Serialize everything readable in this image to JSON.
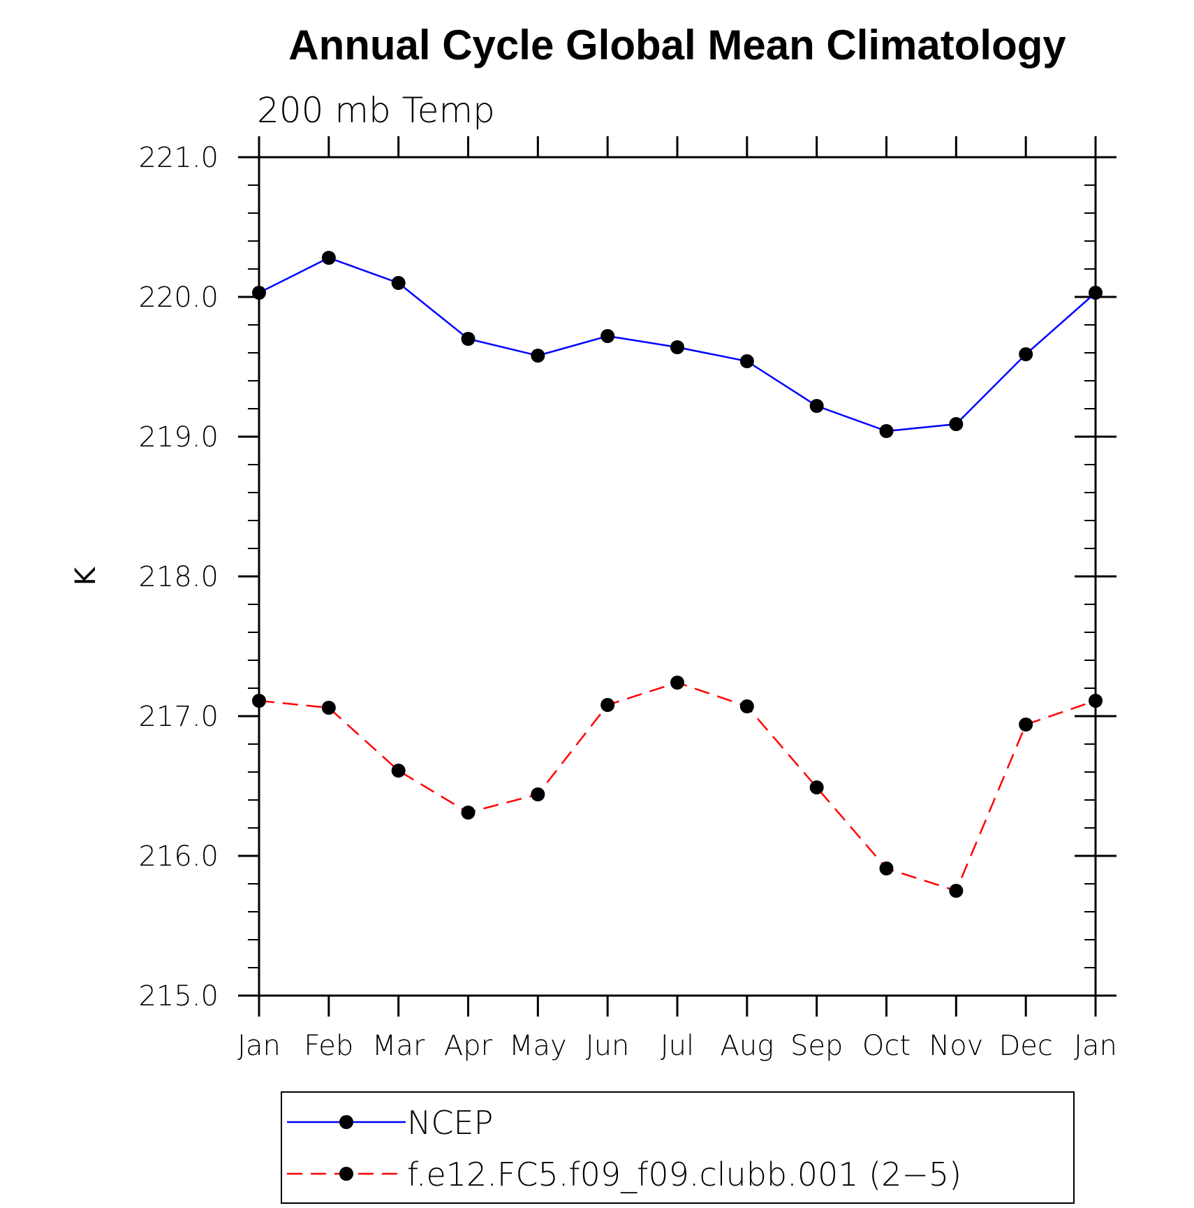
{
  "chart_data": {
    "type": "line",
    "title": "Annual Cycle Global Mean Climatology",
    "subtitle": "200 mb Temp",
    "xlabel": "",
    "ylabel": "K",
    "categories": [
      "Jan",
      "Feb",
      "Mar",
      "Apr",
      "May",
      "Jun",
      "Jul",
      "Aug",
      "Sep",
      "Oct",
      "Nov",
      "Dec",
      "Jan"
    ],
    "ylim": [
      215.0,
      221.0
    ],
    "y_ticks": [
      "215.0",
      "216.0",
      "217.0",
      "218.0",
      "219.0",
      "220.0",
      "221.0"
    ],
    "grid": false,
    "legend_position": "bottom",
    "series": [
      {
        "name": "NCEP",
        "color": "#0000ff",
        "line_style": "solid",
        "marker": "filled-circle",
        "values": [
          220.03,
          220.28,
          220.1,
          219.7,
          219.58,
          219.72,
          219.64,
          219.54,
          219.22,
          219.04,
          219.09,
          219.59,
          220.03
        ]
      },
      {
        "name": "f.e12.FC5.f09_f09.clubb.001 (2−5)",
        "color": "#ff0000",
        "line_style": "dashed",
        "marker": "filled-circle",
        "values": [
          217.11,
          217.06,
          216.61,
          216.31,
          216.44,
          217.08,
          217.24,
          217.07,
          216.49,
          215.91,
          215.75,
          216.94,
          217.11
        ]
      }
    ]
  }
}
